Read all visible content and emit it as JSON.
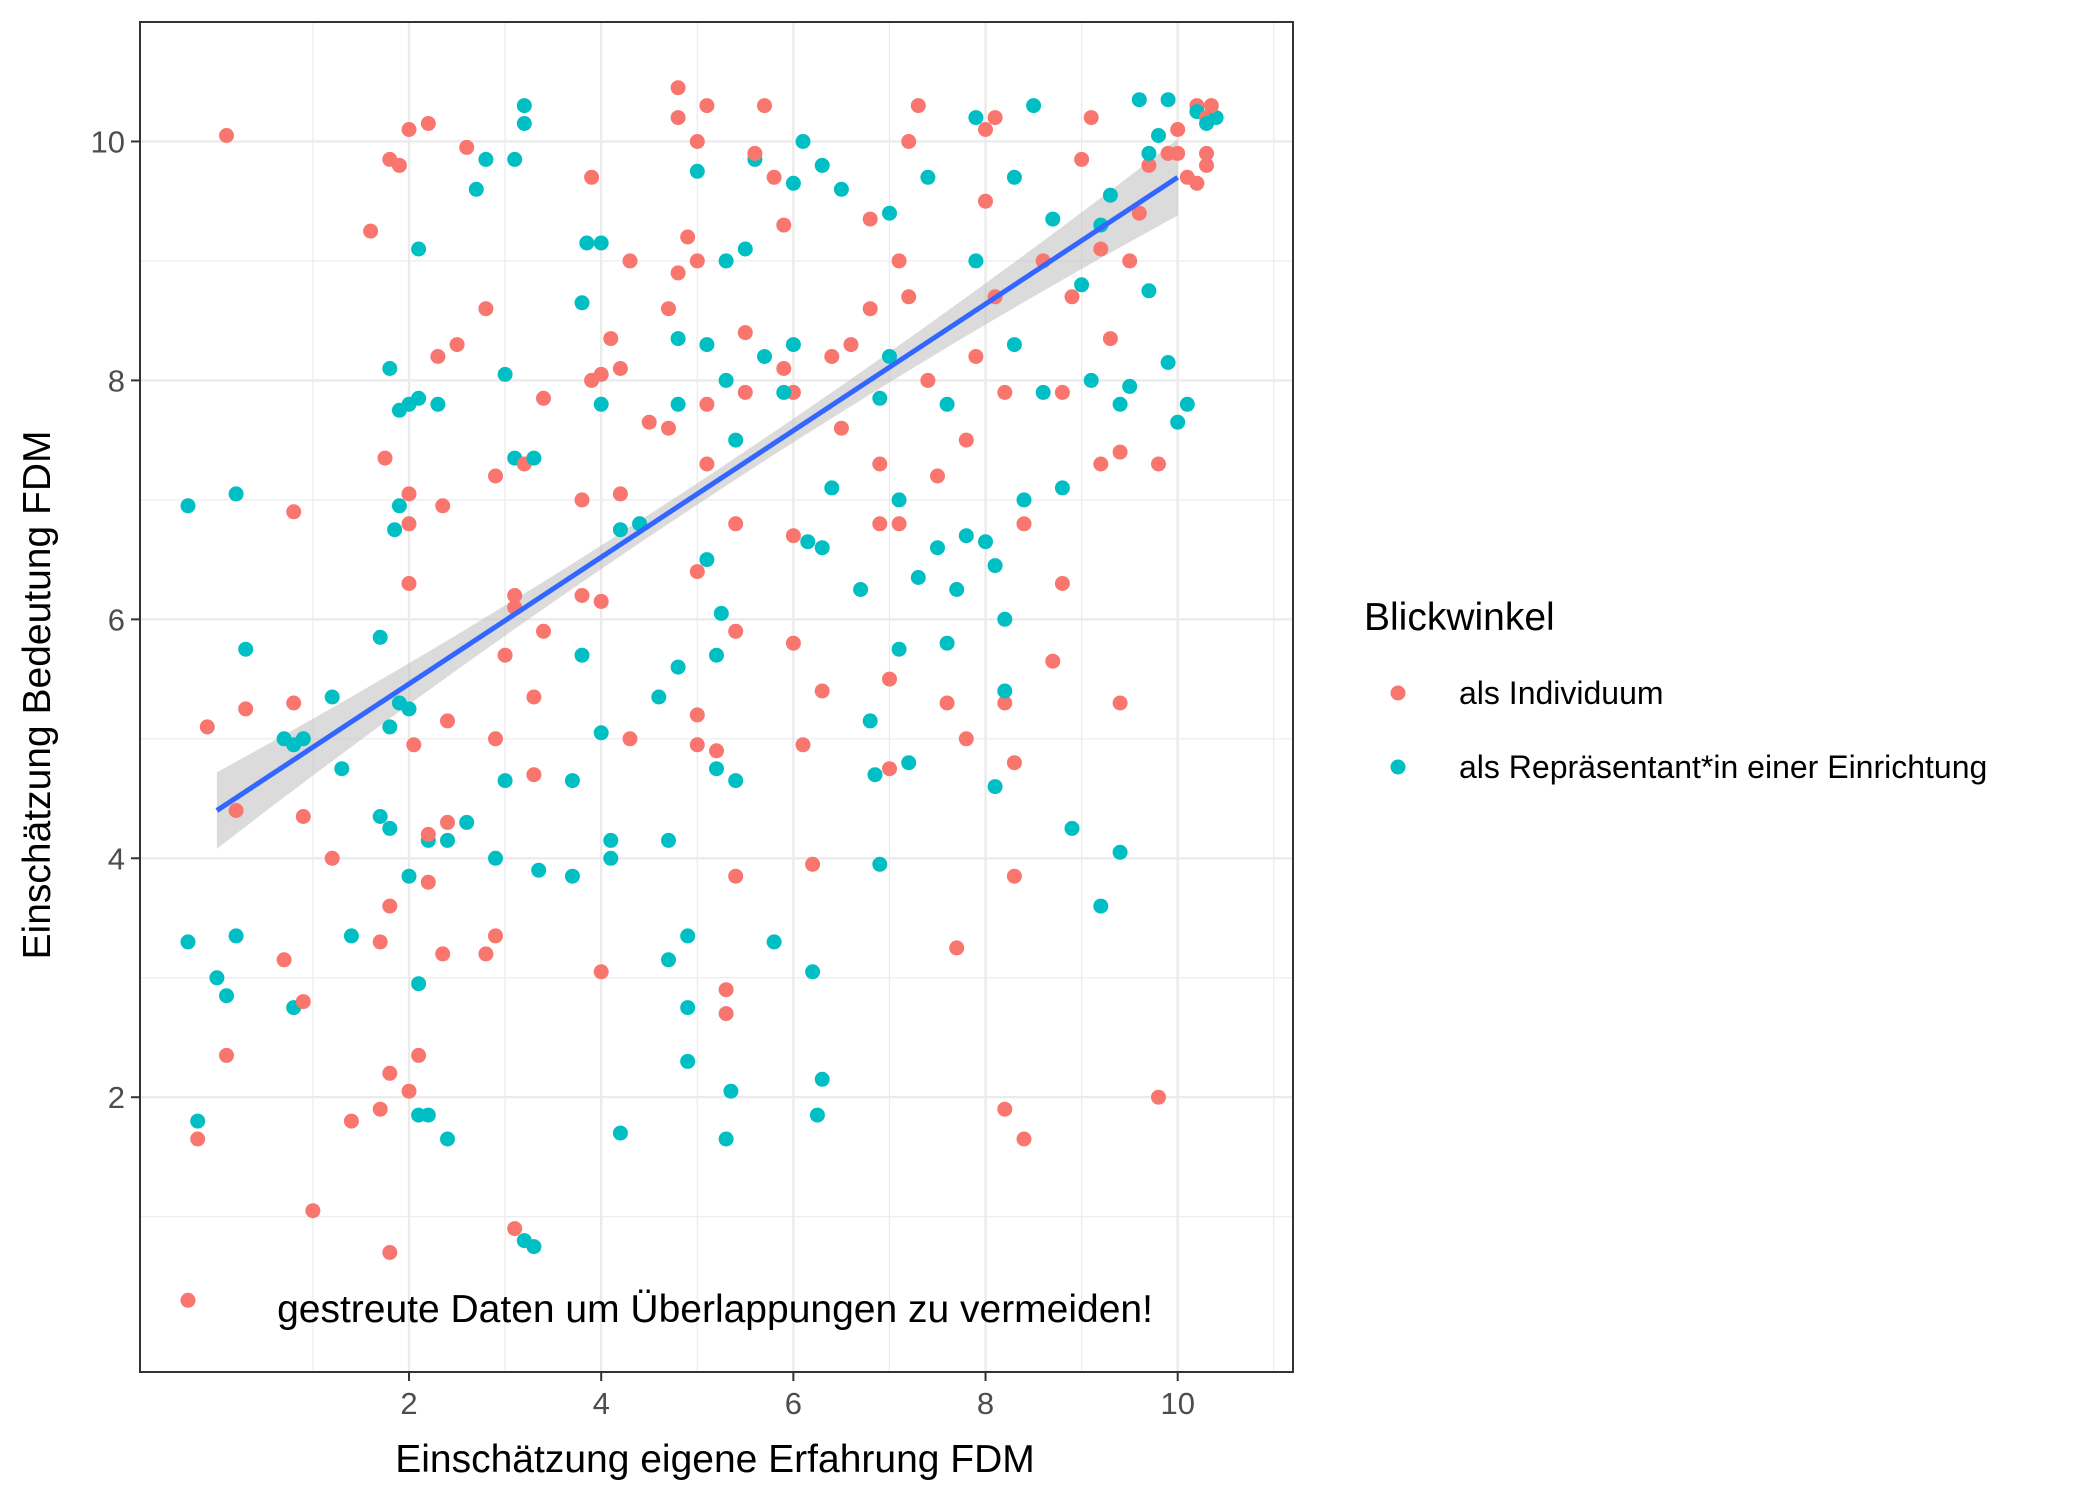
{
  "chart_data": {
    "type": "scatter",
    "title": "",
    "xlabel": "Einschätzung eigene Erfahrung FDM",
    "ylabel": "Einschätzung Bedeutung FDM",
    "xlim": [
      -0.8,
      11.2
    ],
    "ylim": [
      -0.3,
      11.0
    ],
    "x_ticks": [
      2,
      4,
      6,
      8,
      10
    ],
    "y_ticks": [
      2,
      4,
      6,
      8,
      10
    ],
    "x_tick_labels": [
      "2",
      "4",
      "6",
      "8",
      "10"
    ],
    "y_tick_labels": [
      "2",
      "4",
      "6",
      "8",
      "10"
    ],
    "grid": true,
    "annotation": "gestreute Daten um Überlappungen zu vermeiden!",
    "legend": {
      "title": "Blickwinkel",
      "position": "right",
      "entries": [
        "als Individuum",
        "als Repräsentant*in einer Einrichtung"
      ]
    },
    "colors": {
      "individuum": "#f8766d",
      "repraesentant": "#00bfc4",
      "trend": "#3366ff",
      "ribbon": "#bebebe"
    },
    "trend_line": {
      "method": "linear",
      "x": [
        0,
        10
      ],
      "y": [
        4.4,
        9.7
      ],
      "ci_halfwidth_ends": 0.32,
      "ci_halfwidth_mid": 0.09
    },
    "series": [
      {
        "name": "als Individuum",
        "points": [
          [
            -0.3,
            0.3
          ],
          [
            0.1,
            10.05
          ],
          [
            -0.1,
            5.1
          ],
          [
            0.2,
            4.4
          ],
          [
            0.3,
            5.25
          ],
          [
            0.1,
            2.35
          ],
          [
            -0.2,
            1.65
          ],
          [
            0.8,
            6.9
          ],
          [
            0.8,
            5.3
          ],
          [
            0.9,
            4.35
          ],
          [
            0.9,
            2.8
          ],
          [
            1.0,
            1.05
          ],
          [
            1.2,
            4.0
          ],
          [
            1.4,
            1.8
          ],
          [
            0.7,
            3.15
          ],
          [
            1.7,
            3.3
          ],
          [
            1.8,
            3.6
          ],
          [
            1.8,
            2.2
          ],
          [
            1.7,
            1.9
          ],
          [
            1.8,
            0.7
          ],
          [
            1.6,
            9.25
          ],
          [
            1.8,
            9.85
          ],
          [
            1.9,
            9.8
          ],
          [
            2.0,
            10.1
          ],
          [
            2.2,
            10.15
          ],
          [
            1.75,
            7.35
          ],
          [
            2.0,
            6.8
          ],
          [
            2.0,
            7.05
          ],
          [
            2.0,
            6.3
          ],
          [
            2.05,
            4.95
          ],
          [
            2.2,
            3.8
          ],
          [
            2.2,
            4.2
          ],
          [
            2.1,
            2.35
          ],
          [
            2.0,
            2.05
          ],
          [
            2.4,
            4.3
          ],
          [
            2.35,
            3.2
          ],
          [
            2.4,
            5.15
          ],
          [
            2.35,
            6.95
          ],
          [
            2.5,
            8.3
          ],
          [
            2.3,
            8.2
          ],
          [
            2.6,
            9.95
          ],
          [
            2.8,
            8.6
          ],
          [
            2.9,
            7.2
          ],
          [
            2.9,
            5.0
          ],
          [
            2.9,
            3.35
          ],
          [
            2.8,
            3.2
          ],
          [
            3.0,
            5.7
          ],
          [
            3.1,
            6.1
          ],
          [
            3.1,
            6.2
          ],
          [
            3.2,
            7.3
          ],
          [
            3.1,
            0.9
          ],
          [
            3.3,
            4.7
          ],
          [
            3.3,
            5.35
          ],
          [
            3.4,
            5.9
          ],
          [
            3.4,
            7.85
          ],
          [
            3.8,
            6.2
          ],
          [
            3.8,
            7.0
          ],
          [
            3.9,
            8.0
          ],
          [
            3.9,
            9.7
          ],
          [
            4.0,
            3.05
          ],
          [
            4.0,
            6.15
          ],
          [
            4.0,
            8.05
          ],
          [
            4.1,
            8.35
          ],
          [
            4.2,
            8.1
          ],
          [
            4.2,
            7.05
          ],
          [
            4.3,
            9.0
          ],
          [
            4.3,
            5.0
          ],
          [
            4.4,
            6.8
          ],
          [
            4.5,
            7.65
          ],
          [
            4.7,
            7.6
          ],
          [
            4.7,
            8.6
          ],
          [
            4.8,
            8.9
          ],
          [
            4.8,
            10.45
          ],
          [
            4.8,
            10.2
          ],
          [
            4.9,
            9.2
          ],
          [
            5.0,
            9.0
          ],
          [
            5.0,
            10.0
          ],
          [
            5.1,
            10.3
          ],
          [
            5.1,
            7.8
          ],
          [
            5.1,
            7.3
          ],
          [
            5.0,
            6.4
          ],
          [
            5.0,
            5.2
          ],
          [
            5.0,
            4.95
          ],
          [
            5.2,
            4.9
          ],
          [
            5.3,
            2.9
          ],
          [
            5.3,
            2.7
          ],
          [
            5.4,
            3.85
          ],
          [
            5.4,
            5.9
          ],
          [
            5.4,
            6.8
          ],
          [
            5.5,
            7.9
          ],
          [
            5.5,
            8.4
          ],
          [
            5.6,
            9.9
          ],
          [
            5.7,
            10.3
          ],
          [
            5.8,
            9.7
          ],
          [
            5.9,
            9.3
          ],
          [
            5.9,
            8.1
          ],
          [
            6.0,
            7.9
          ],
          [
            6.0,
            6.7
          ],
          [
            6.0,
            5.8
          ],
          [
            6.1,
            4.95
          ],
          [
            6.2,
            3.95
          ],
          [
            6.3,
            5.4
          ],
          [
            6.4,
            8.2
          ],
          [
            6.5,
            7.6
          ],
          [
            6.6,
            8.3
          ],
          [
            6.8,
            9.35
          ],
          [
            6.8,
            8.6
          ],
          [
            6.9,
            7.3
          ],
          [
            6.9,
            6.8
          ],
          [
            7.0,
            4.75
          ],
          [
            7.0,
            5.5
          ],
          [
            7.1,
            6.8
          ],
          [
            7.1,
            9.0
          ],
          [
            7.2,
            8.7
          ],
          [
            7.2,
            10.0
          ],
          [
            7.3,
            10.3
          ],
          [
            7.4,
            8.0
          ],
          [
            7.5,
            7.2
          ],
          [
            7.6,
            5.3
          ],
          [
            7.7,
            3.25
          ],
          [
            7.8,
            5.0
          ],
          [
            7.8,
            7.5
          ],
          [
            7.9,
            8.2
          ],
          [
            8.0,
            9.5
          ],
          [
            8.0,
            10.1
          ],
          [
            8.1,
            10.2
          ],
          [
            8.1,
            8.7
          ],
          [
            8.2,
            7.9
          ],
          [
            8.2,
            5.3
          ],
          [
            8.2,
            1.9
          ],
          [
            8.3,
            3.85
          ],
          [
            8.3,
            4.8
          ],
          [
            8.4,
            6.8
          ],
          [
            8.4,
            1.65
          ],
          [
            8.6,
            9.0
          ],
          [
            8.7,
            5.65
          ],
          [
            8.8,
            6.3
          ],
          [
            8.8,
            7.9
          ],
          [
            8.9,
            8.7
          ],
          [
            9.0,
            9.85
          ],
          [
            9.1,
            10.2
          ],
          [
            9.2,
            7.3
          ],
          [
            9.2,
            9.1
          ],
          [
            9.3,
            8.35
          ],
          [
            9.4,
            7.4
          ],
          [
            9.4,
            5.3
          ],
          [
            9.5,
            9.0
          ],
          [
            9.6,
            9.4
          ],
          [
            9.7,
            9.8
          ],
          [
            9.8,
            7.3
          ],
          [
            9.8,
            2.0
          ],
          [
            9.9,
            9.9
          ],
          [
            10.0,
            10.1
          ],
          [
            10.1,
            9.7
          ],
          [
            10.2,
            10.3
          ],
          [
            10.3,
            9.9
          ],
          [
            10.3,
            10.2
          ],
          [
            10.0,
            9.9
          ],
          [
            10.2,
            9.65
          ],
          [
            10.3,
            9.8
          ],
          [
            10.35,
            10.3
          ]
        ]
      },
      {
        "name": "als Repräsentant*in einer Einrichtung",
        "points": [
          [
            -0.3,
            6.95
          ],
          [
            -0.3,
            3.3
          ],
          [
            -0.2,
            1.8
          ],
          [
            0.0,
            3.0
          ],
          [
            0.1,
            2.85
          ],
          [
            0.2,
            3.35
          ],
          [
            0.2,
            7.05
          ],
          [
            0.3,
            5.75
          ],
          [
            0.7,
            5.0
          ],
          [
            0.8,
            2.75
          ],
          [
            0.9,
            5.0
          ],
          [
            0.8,
            4.95
          ],
          [
            1.2,
            5.35
          ],
          [
            1.3,
            4.75
          ],
          [
            1.4,
            3.35
          ],
          [
            1.7,
            5.85
          ],
          [
            1.7,
            4.35
          ],
          [
            1.8,
            4.25
          ],
          [
            1.8,
            5.1
          ],
          [
            1.9,
            5.3
          ],
          [
            1.85,
            6.75
          ],
          [
            1.9,
            6.95
          ],
          [
            1.8,
            8.1
          ],
          [
            1.9,
            7.75
          ],
          [
            2.0,
            7.8
          ],
          [
            2.1,
            7.85
          ],
          [
            2.0,
            5.25
          ],
          [
            2.0,
            3.85
          ],
          [
            2.1,
            1.85
          ],
          [
            2.1,
            2.95
          ],
          [
            2.2,
            4.15
          ],
          [
            2.2,
            1.85
          ],
          [
            2.3,
            7.8
          ],
          [
            2.4,
            4.15
          ],
          [
            2.4,
            1.65
          ],
          [
            2.1,
            9.1
          ],
          [
            2.6,
            4.3
          ],
          [
            2.7,
            9.6
          ],
          [
            2.8,
            9.85
          ],
          [
            2.9,
            4.0
          ],
          [
            3.0,
            4.65
          ],
          [
            3.0,
            8.05
          ],
          [
            3.1,
            7.35
          ],
          [
            3.2,
            10.3
          ],
          [
            3.2,
            10.15
          ],
          [
            3.1,
            9.85
          ],
          [
            3.2,
            0.8
          ],
          [
            3.3,
            0.75
          ],
          [
            3.3,
            7.35
          ],
          [
            3.35,
            3.9
          ],
          [
            3.7,
            3.85
          ],
          [
            3.7,
            4.65
          ],
          [
            3.8,
            5.7
          ],
          [
            3.8,
            8.65
          ],
          [
            3.85,
            9.15
          ],
          [
            4.0,
            9.15
          ],
          [
            4.0,
            7.8
          ],
          [
            4.0,
            5.05
          ],
          [
            4.1,
            4.15
          ],
          [
            4.1,
            4.0
          ],
          [
            4.2,
            1.7
          ],
          [
            4.2,
            6.75
          ],
          [
            4.4,
            6.8
          ],
          [
            4.6,
            5.35
          ],
          [
            4.7,
            4.15
          ],
          [
            4.7,
            3.15
          ],
          [
            4.8,
            5.6
          ],
          [
            4.8,
            7.8
          ],
          [
            4.8,
            8.35
          ],
          [
            4.9,
            3.35
          ],
          [
            4.9,
            2.75
          ],
          [
            4.9,
            2.3
          ],
          [
            5.0,
            9.75
          ],
          [
            5.1,
            8.3
          ],
          [
            5.1,
            6.5
          ],
          [
            5.2,
            5.7
          ],
          [
            5.25,
            6.05
          ],
          [
            5.2,
            4.75
          ],
          [
            5.3,
            8.0
          ],
          [
            5.3,
            9.0
          ],
          [
            5.3,
            1.65
          ],
          [
            5.35,
            2.05
          ],
          [
            5.4,
            4.65
          ],
          [
            5.4,
            7.5
          ],
          [
            5.5,
            9.1
          ],
          [
            5.6,
            9.85
          ],
          [
            5.7,
            8.2
          ],
          [
            5.8,
            3.3
          ],
          [
            5.9,
            7.9
          ],
          [
            6.0,
            8.3
          ],
          [
            6.0,
            9.65
          ],
          [
            6.1,
            10.0
          ],
          [
            6.15,
            6.65
          ],
          [
            6.2,
            3.05
          ],
          [
            6.25,
            1.85
          ],
          [
            6.3,
            2.15
          ],
          [
            6.3,
            6.6
          ],
          [
            6.3,
            9.8
          ],
          [
            6.4,
            7.1
          ],
          [
            6.5,
            9.6
          ],
          [
            6.7,
            6.25
          ],
          [
            6.8,
            5.15
          ],
          [
            6.85,
            4.7
          ],
          [
            6.9,
            3.95
          ],
          [
            6.9,
            7.85
          ],
          [
            7.0,
            8.2
          ],
          [
            7.0,
            9.4
          ],
          [
            7.1,
            7.0
          ],
          [
            7.1,
            5.75
          ],
          [
            7.2,
            4.8
          ],
          [
            7.3,
            6.35
          ],
          [
            7.4,
            9.7
          ],
          [
            7.5,
            6.6
          ],
          [
            7.6,
            7.8
          ],
          [
            7.6,
            5.8
          ],
          [
            7.7,
            6.25
          ],
          [
            7.8,
            6.7
          ],
          [
            7.9,
            9.0
          ],
          [
            7.9,
            10.2
          ],
          [
            8.0,
            6.65
          ],
          [
            8.1,
            4.6
          ],
          [
            8.1,
            6.45
          ],
          [
            8.2,
            6.0
          ],
          [
            8.2,
            5.4
          ],
          [
            8.3,
            8.3
          ],
          [
            8.3,
            9.7
          ],
          [
            8.4,
            7.0
          ],
          [
            8.5,
            10.3
          ],
          [
            8.6,
            7.9
          ],
          [
            8.7,
            9.35
          ],
          [
            8.8,
            7.1
          ],
          [
            8.9,
            4.25
          ],
          [
            9.0,
            8.8
          ],
          [
            9.1,
            8.0
          ],
          [
            9.2,
            3.6
          ],
          [
            9.2,
            9.3
          ],
          [
            9.3,
            9.55
          ],
          [
            9.4,
            4.05
          ],
          [
            9.4,
            7.8
          ],
          [
            9.5,
            7.95
          ],
          [
            9.6,
            10.35
          ],
          [
            9.7,
            8.75
          ],
          [
            9.8,
            10.05
          ],
          [
            9.9,
            8.15
          ],
          [
            10.0,
            7.65
          ],
          [
            10.1,
            7.8
          ],
          [
            10.2,
            10.25
          ],
          [
            10.3,
            10.15
          ],
          [
            10.4,
            10.2
          ],
          [
            9.9,
            10.35
          ],
          [
            9.7,
            9.9
          ]
        ]
      }
    ]
  }
}
